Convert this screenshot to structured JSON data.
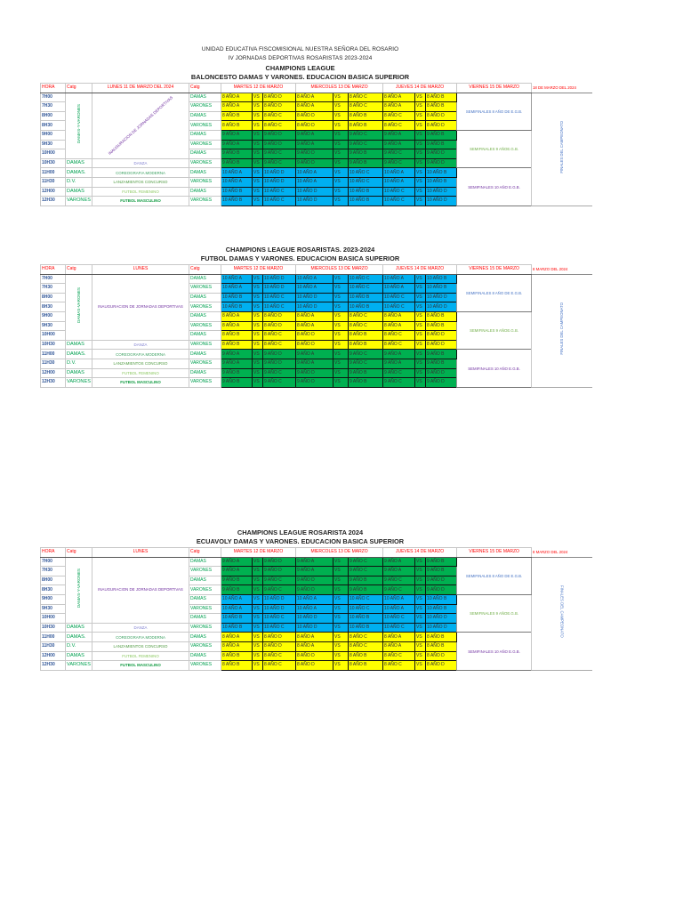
{
  "colors": {
    "8": "#ffff00",
    "9": "#00b050",
    "10": "#00b0f0",
    "header": "#ff0000",
    "hora": "#2f5597",
    "catg": "#00a050"
  },
  "lunes_colors": [
    "#7f7fd0",
    "#3aa060",
    "#4f9a40",
    "#8cc860",
    "#109a40"
  ],
  "semi_colors": [
    "#4472c4",
    "#70ad47",
    "#7030a0"
  ],
  "tables": [
    {
      "titles": [
        "UNIDAD EDUCATIVA FISCOMISIONAL NUESTRA SEÑORA DEL ROSARIO",
        "IV JORNADAS DEPORTIVAS ROSARISTAS 2023-2024",
        "CHAMPIONS LEAGUE",
        "BALONCESTO DAMAS Y VARONES.  EDUCACION BASICA SUPERIOR"
      ],
      "headers": [
        "HORA",
        "Catg",
        "LUNES 11 DE MARZO DEL 2024",
        "Catg",
        "MARTES  12 DE MARZO",
        "MIERCOLES 13 DE MARZO",
        "JUEVES 14 DE MARZO",
        "VIERNES 15  DE MARZO",
        "18 DE MARZO DEL 2024"
      ],
      "catg_block": "DAMAS-Y-VARONES",
      "lunes_block": "INAUGURACION DE JORNADAS DEPORTIVAS",
      "lunes_style": "diagonal",
      "semis": [
        "SEMIFINALES 8 AÑO DE E.G.B.",
        "SEMIFINALES 9 AÑOE.G.B.",
        "SEMIFINALES 10 AÑO E.G.B."
      ],
      "final": "FINALES DEL CAMPEONATO",
      "rows": [
        {
          "hora": "7H00",
          "catg2": "DAMAS",
          "tue": [
            "8 AÑO A",
            "VS",
            "8 AÑO D"
          ],
          "wed": [
            "8 AÑO A",
            "VS",
            "8 AÑO C"
          ],
          "thu": [
            "8 AÑO A",
            "VS",
            "8 AÑO B"
          ]
        },
        {
          "hora": "7H30",
          "catg2": "VARONES",
          "tue": [
            "8 AÑO A",
            "VS",
            "8 AÑO D"
          ],
          "wed": [
            "8 AÑO A",
            "VS",
            "8 AÑO C"
          ],
          "thu": [
            "8 AÑO A",
            "VS",
            "8 AÑO B"
          ]
        },
        {
          "hora": "8H00",
          "catg2": "DAMAS",
          "tue": [
            "8 AÑO B",
            "VS",
            "8 AÑO C"
          ],
          "wed": [
            "8 AÑO D",
            "VS",
            "8 AÑO B"
          ],
          "thu": [
            "8 AÑO C",
            "VS",
            "8 AÑO D"
          ]
        },
        {
          "hora": "8H30",
          "catg2": "VARONES",
          "tue": [
            "8 AÑO B",
            "VS",
            "8 AÑO C"
          ],
          "wed": [
            "8 AÑO D",
            "VS",
            "8 AÑO B"
          ],
          "thu": [
            "8 AÑO C",
            "VS",
            "8 AÑO D"
          ]
        },
        {
          "hora": "9H00",
          "catg2": "DAMAS",
          "tue": [
            "9 AÑO A",
            "VS",
            "9 AÑO D"
          ],
          "wed": [
            "9 AÑO A",
            "VS",
            "9 AÑO C"
          ],
          "thu": [
            "9 AÑO A",
            "VS",
            "9 AÑO B"
          ]
        },
        {
          "hora": "9H30",
          "catg2": "VARONES",
          "tue": [
            "9 AÑO A",
            "VS",
            "9 AÑO D"
          ],
          "wed": [
            "9 AÑO A",
            "VS",
            "9 AÑO C"
          ],
          "thu": [
            "9 AÑO A",
            "VS",
            "9 AÑO B"
          ]
        },
        {
          "hora": "10H00",
          "catg2": "DAMAS",
          "tue": [
            "9 AÑO B",
            "VS",
            "9 AÑO C"
          ],
          "wed": [
            "9 AÑO D",
            "VS",
            "9 AÑO B"
          ],
          "thu": [
            "9 AÑO C",
            "VS",
            "9 AÑO D"
          ]
        },
        {
          "hora": "10H30",
          "catg": "DAMAS",
          "lunes": "DANZA",
          "catg2": "VARONES",
          "tue": [
            "9 AÑO B",
            "VS",
            "9 AÑO C"
          ],
          "wed": [
            "9 AÑO D",
            "VS",
            "9 AÑO B"
          ],
          "thu": [
            "9 AÑO C",
            "VS",
            "9 AÑO D"
          ]
        },
        {
          "hora": "11H00",
          "catg": "DAMAS.",
          "lunes": "COREOGRAFIA MODERNA",
          "catg2": "DAMAS",
          "tue": [
            "10 AÑO A",
            "VS",
            "10 AÑO D"
          ],
          "wed": [
            "10 AÑO A",
            "VS",
            "10 AÑO C"
          ],
          "thu": [
            "10 AÑO A",
            "VS",
            "10 AÑO B"
          ]
        },
        {
          "hora": "11H30",
          "catg": "D.V.",
          "lunes": "LANZAMIENTOS  CONCURSO",
          "catg2": "VARONES",
          "tue": [
            "10 AÑO A",
            "VS",
            "10 AÑO D"
          ],
          "wed": [
            "10 AÑO A",
            "VS",
            "10 AÑO C"
          ],
          "thu": [
            "10 AÑO A",
            "VS",
            "10 AÑO B"
          ]
        },
        {
          "hora": "12H00",
          "catg": "DAMAS",
          "lunes": "FUTBOL FEMENINO",
          "catg2": "DAMAS",
          "tue": [
            "10 AÑO B",
            "VS",
            "10 AÑO C"
          ],
          "wed": [
            "10 AÑO D",
            "VS",
            "10 AÑO B"
          ],
          "thu": [
            "10 AÑO C",
            "VS",
            "10 AÑO D"
          ]
        },
        {
          "hora": "12H30",
          "catg": "VARONES",
          "lunes": "FUTBOL MASCULINO",
          "catg2": "VARONES",
          "tue": [
            "10 AÑO B",
            "VS",
            "10 AÑO C"
          ],
          "wed": [
            "10 AÑO D",
            "VS",
            "10 AÑO B"
          ],
          "thu": [
            "10 AÑO C",
            "VS",
            "10 AÑO D"
          ]
        }
      ]
    },
    {
      "titles": [
        "CHAMPIONS LEAGUE  ROSARISTAS. 2023-2024",
        "FUTBOL  DAMAS Y VARONES.  EDUCACION BASICA SUPERIOR"
      ],
      "headers": [
        "HORA",
        "Catg",
        "LUNES",
        "Catg",
        "MARTES  12 DE MARZO",
        "MIERCOLES 13 DE MARZO",
        "JUEVES 14 DE MARZO",
        "VIERNES 15  DE MARZO",
        "8 MARZO DEL 2024"
      ],
      "catg_block": "DAMAS-VARONES",
      "lunes_block": "INAUGURACION DE JORNADAS DEPORTIVAS",
      "lunes_style": "flat",
      "semis": [
        "SEMIFINALES 8 AÑO DE E.G.B.",
        "SEMIFINALES 9 AÑOE.G.B.",
        "SEMIFINALES 10 AÑO E.G.B."
      ],
      "final": "FINALES DEL CAMPEONATO",
      "rows": [
        {
          "hora": "7H00",
          "catg2": "DAMAS",
          "tue": [
            "10 AÑO A",
            "VS",
            "10 AÑO D"
          ],
          "wed": [
            "10 AÑO A",
            "VS",
            "10 AÑO C"
          ],
          "thu": [
            "10 AÑO A",
            "VS",
            "10 AÑO B"
          ]
        },
        {
          "hora": "7H30",
          "catg2": "VARONES",
          "tue": [
            "10 AÑO A",
            "VS",
            "10 AÑO D"
          ],
          "wed": [
            "10 AÑO A",
            "VS",
            "10 AÑO C"
          ],
          "thu": [
            "10 AÑO A",
            "VS",
            "10 AÑO B"
          ]
        },
        {
          "hora": "8H00",
          "catg2": "DAMAS",
          "tue": [
            "10 AÑO B",
            "VS",
            "10 AÑO C"
          ],
          "wed": [
            "10 AÑO D",
            "VS",
            "10 AÑO B"
          ],
          "thu": [
            "10 AÑO C",
            "VS",
            "10 AÑO D"
          ]
        },
        {
          "hora": "8H30",
          "catg2": "VARONES",
          "tue": [
            "10 AÑO B",
            "VS",
            "10 AÑO C"
          ],
          "wed": [
            "10 AÑO D",
            "VS",
            "10 AÑO B"
          ],
          "thu": [
            "10 AÑO C",
            "VS",
            "10 AÑO D"
          ]
        },
        {
          "hora": "9H00",
          "catg2": "DAMAS",
          "tue": [
            "8 AÑO A",
            "VS",
            "8 AÑO D"
          ],
          "wed": [
            "8 AÑO A",
            "VS",
            "8 AÑO C"
          ],
          "thu": [
            "8 AÑO A",
            "VS",
            "8 AÑO B"
          ]
        },
        {
          "hora": "9H30",
          "catg2": "VARONES",
          "tue": [
            "8 AÑO A",
            "VS",
            "8 AÑO D"
          ],
          "wed": [
            "8 AÑO A",
            "VS",
            "8 AÑO C"
          ],
          "thu": [
            "8 AÑO A",
            "VS",
            "8 AÑO B"
          ]
        },
        {
          "hora": "10H00",
          "catg2": "DAMAS",
          "tue": [
            "8 AÑO B",
            "VS",
            "8 AÑO C"
          ],
          "wed": [
            "8 AÑO D",
            "VS",
            "8 AÑO B"
          ],
          "thu": [
            "8 AÑO C",
            "VS",
            "8 AÑO D"
          ]
        },
        {
          "hora": "10H30",
          "catg": "DAMAS",
          "lunes": "DANZA",
          "catg2": "VARONES",
          "tue": [
            "8 AÑO B",
            "VS",
            "8 AÑO C"
          ],
          "wed": [
            "8 AÑO D",
            "VS",
            "8 AÑO B"
          ],
          "thu": [
            "8 AÑO C",
            "VS",
            "8 AÑO D"
          ]
        },
        {
          "hora": "11H00",
          "catg": "DAMAS.",
          "lunes": "COREOGRAFIA MODERNA",
          "catg2": "DAMAS",
          "tue": [
            "9 AÑO A",
            "VS",
            "9 AÑO D"
          ],
          "wed": [
            "9 AÑO A",
            "VS",
            "9 AÑO C"
          ],
          "thu": [
            "9 AÑO A",
            "VS",
            "9 AÑO B"
          ]
        },
        {
          "hora": "11H30",
          "catg": "D.V.",
          "lunes": "LANZAMIENTOS  CONCURSO",
          "catg2": "VARONES",
          "tue": [
            "9 AÑO A",
            "VS",
            "9 AÑO D"
          ],
          "wed": [
            "9 AÑO A",
            "VS",
            "9 AÑO C"
          ],
          "thu": [
            "9 AÑO A",
            "VS",
            "9 AÑO B"
          ]
        },
        {
          "hora": "12H00",
          "catg": "DAMAS",
          "lunes": "FUTBOL FEMENINO",
          "catg2": "DAMAS",
          "tue": [
            "9 AÑO B",
            "VS",
            "9 AÑO C"
          ],
          "wed": [
            "9 AÑO D",
            "VS",
            "9 AÑO B"
          ],
          "thu": [
            "9 AÑO C",
            "VS",
            "9 AÑO D"
          ]
        },
        {
          "hora": "12H30",
          "catg": "VARONES",
          "lunes": "FUTBOL MASCULINO",
          "catg2": "VARONES",
          "tue": [
            "9 AÑO B",
            "VS",
            "9 AÑO C"
          ],
          "wed": [
            "9 AÑO D",
            "VS",
            "9 AÑO B"
          ],
          "thu": [
            "9 AÑO C",
            "VS",
            "9 AÑO D"
          ]
        }
      ]
    },
    {
      "titles": [
        "CHAMPIONS LEAGUE ROSARISTA 2024",
        "ECUAVOLY  DAMAS Y VARONES.  EDUCACION BASICA SUPERIOR"
      ],
      "headers": [
        "HORA",
        "Catg",
        "LUNES",
        "Catg",
        "MARTES  12 DE MARZO",
        "MIERCOLES 13 DE MARZO",
        "JUEVES 14 DE MARZO",
        "VIERNES 15  DE MARZO",
        "8 MARZO DEL 2024"
      ],
      "catg_block": "DAMAS-Y-VARONES",
      "lunes_block": "INAUGURACION DE JORNADAS DEPORTIVAS",
      "lunes_style": "flat",
      "semis": [
        "SEMIFINALES 8 AÑO DE E.G.B.",
        "SEMIFINALES 9 AÑOE.G.B.",
        "SEMIFINALES 10 AÑO E.G.B."
      ],
      "final": "FINALES DEL CAMPEONATO",
      "rows": [
        {
          "hora": "7H00",
          "catg2": "DAMAS",
          "tue": [
            "9 AÑO A",
            "VS",
            "9 AÑO D"
          ],
          "wed": [
            "9 AÑO A",
            "VS",
            "9 AÑO C"
          ],
          "thu": [
            "9 AÑO A",
            "VS",
            "9 AÑO B"
          ]
        },
        {
          "hora": "7H30",
          "catg2": "VARONES",
          "tue": [
            "9 AÑO A",
            "VS",
            "9 AÑO D"
          ],
          "wed": [
            "9 AÑO A",
            "VS",
            "9 AÑO C"
          ],
          "thu": [
            "9 AÑO A",
            "VS",
            "9 AÑO B"
          ]
        },
        {
          "hora": "8H00",
          "catg2": "DAMAS",
          "tue": [
            "9 AÑO B",
            "VS",
            "9 AÑO C"
          ],
          "wed": [
            "9 AÑO D",
            "VS",
            "9 AÑO B"
          ],
          "thu": [
            "9 AÑO C",
            "VS",
            "9 AÑO D"
          ]
        },
        {
          "hora": "8H30",
          "catg2": "VARONES",
          "tue": [
            "9 AÑO B",
            "VS",
            "9 AÑO C"
          ],
          "wed": [
            "9 AÑO D",
            "VS",
            "9 AÑO B"
          ],
          "thu": [
            "9 AÑO C",
            "VS",
            "9 AÑO D"
          ]
        },
        {
          "hora": "9H00",
          "catg2": "DAMAS",
          "tue": [
            "10 AÑO A",
            "VS",
            "10 AÑO D"
          ],
          "wed": [
            "10 AÑO A",
            "VS",
            "10 AÑO C"
          ],
          "thu": [
            "10 AÑO A",
            "VS",
            "10 AÑO B"
          ]
        },
        {
          "hora": "9H30",
          "catg2": "VARONES",
          "tue": [
            "10 AÑO A",
            "VS",
            "10 AÑO D"
          ],
          "wed": [
            "10 AÑO A",
            "VS",
            "10 AÑO C"
          ],
          "thu": [
            "10 AÑO A",
            "VS",
            "10 AÑO B"
          ]
        },
        {
          "hora": "10H00",
          "catg2": "DAMAS",
          "tue": [
            "10 AÑO B",
            "VS",
            "10 AÑO C"
          ],
          "wed": [
            "10 AÑO D",
            "VS",
            "10 AÑO B"
          ],
          "thu": [
            "10 AÑO C",
            "VS",
            "10 AÑO D"
          ]
        },
        {
          "hora": "10H30",
          "catg": "DAMAS",
          "lunes": "DANZA",
          "catg2": "VARONES",
          "tue": [
            "10 AÑO B",
            "VS",
            "10 AÑO C"
          ],
          "wed": [
            "10 AÑO D",
            "VS",
            "10 AÑO B"
          ],
          "thu": [
            "10 AÑO C",
            "VS",
            "10 AÑO D"
          ]
        },
        {
          "hora": "11H00",
          "catg": "DAMAS.",
          "lunes": "COREOGRAFIA MODERNA",
          "catg2": "DAMAS",
          "tue": [
            "8 AÑO A",
            "VS",
            "8 AÑO D"
          ],
          "wed": [
            "8 AÑO A",
            "VS",
            "8 AÑO C"
          ],
          "thu": [
            "8 AÑO A",
            "VS",
            "8 AÑO B"
          ]
        },
        {
          "hora": "11H30",
          "catg": "D.V.",
          "lunes": "LANZAMIENTOS  CONCURSO",
          "catg2": "VARONES",
          "tue": [
            "8 AÑO A",
            "VS",
            "8 AÑO D"
          ],
          "wed": [
            "8 AÑO A",
            "VS",
            "8 AÑO C"
          ],
          "thu": [
            "8 AÑO A",
            "VS",
            "8 AÑO B"
          ]
        },
        {
          "hora": "12H00",
          "catg": "DAMAS",
          "lunes": "FUTBOL FEMENINO",
          "catg2": "DAMAS",
          "tue": [
            "8 AÑO B",
            "VS",
            "8 AÑO C"
          ],
          "wed": [
            "8 AÑO D",
            "VS",
            "8 AÑO B"
          ],
          "thu": [
            "8 AÑO C",
            "VS",
            "8 AÑO D"
          ]
        },
        {
          "hora": "12H30",
          "catg": "VARONES",
          "lunes": "FUTBOL MASCULINO",
          "catg2": "VARONES",
          "tue": [
            "8 AÑO B",
            "VS",
            "8 AÑO C"
          ],
          "wed": [
            "8 AÑO D",
            "VS",
            "8 AÑO B"
          ],
          "thu": [
            "8 AÑO C",
            "VS",
            "8 AÑO D"
          ]
        }
      ]
    }
  ]
}
